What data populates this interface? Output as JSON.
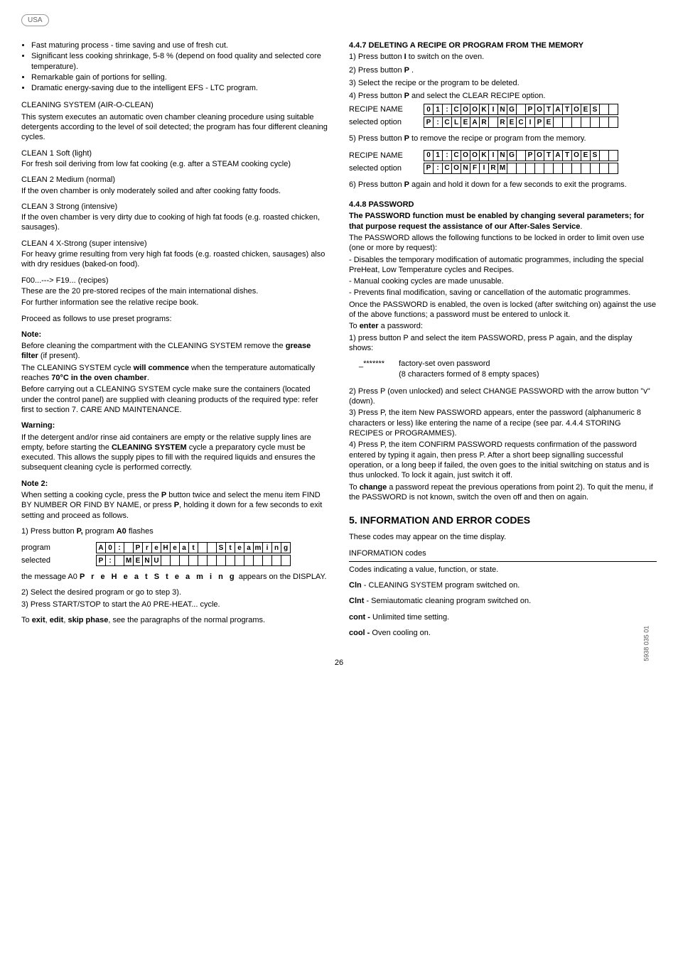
{
  "badge": "USA",
  "left": {
    "bullets": [
      "Fast maturing process - time saving and use of fresh cut.",
      "Significant less cooking shrinkage, 5-8 % (depend on food quality and selected core temperature).",
      "Remarkable gain of portions for selling.",
      "Dramatic energy-saving due to the intelligent EFS - LTC program."
    ],
    "cleaning_title": "CLEANING SYSTEM (AIR-O-CLEAN)",
    "cleaning_body": "This system executes an automatic oven chamber cleaning procedure using suitable detergents according to the level of soil detected; the program has four different cleaning cycles.",
    "clean1_h": "CLEAN  1  Soft (light)",
    "clean1_b": "For fresh soil deriving from low fat cooking (e.g. after a STEAM cooking cycle)",
    "clean2_h": "CLEAN  2 Medium (normal)",
    "clean2_b": "If the oven chamber is only moderately soiled and after cooking fatty foods.",
    "clean3_h": "CLEAN  3 Strong (intensive)",
    "clean3_b": "If the oven chamber is very dirty due to cooking of high fat foods (e.g. roasted chicken, sausages).",
    "clean4_h": "CLEAN  4 X-Strong (super intensive)",
    "clean4_b": "For heavy grime resulting from very high fat foods (e.g. roasted chicken, sausages) also with dry residues (baked-on food).",
    "recipes_h": "F00...---> F19...   (recipes)",
    "recipes_b1": "These are the 20 pre-stored recipes of the main international dishes.",
    "recipes_b2": "For further information see the relative recipe book.",
    "proceed": "Proceed as follows to use preset programs:",
    "note_h": "Note:",
    "note_b1a": "Before cleaning the compartment with the CLEANING SYSTEM remove the ",
    "note_b1b": "grease filter",
    "note_b1c": " (if present).",
    "note_b2a": "The CLEANING SYSTEM cycle ",
    "note_b2b": "will commence",
    "note_b2c": " when the temperature automatically reaches ",
    "note_b2d": "70°C in the oven chamber",
    "note_b2e": ".",
    "note_b3": "Before carrying out a CLEANING SYSTEM cycle make sure the containers (located under the control panel) are supplied with cleaning products of the required type: refer first to section 7. CARE AND MAINTENANCE.",
    "warn_h": "Warning:",
    "warn_b_a": "If the detergent and/or rinse aid containers are empty or the relative supply lines are empty, before starting the ",
    "warn_b_b": "CLEANING SYSTEM",
    "warn_b_c": " cycle a preparatory cycle must be executed. This allows the supply pipes to fill with the required liquids and ensures the subsequent cleaning cycle is performed correctly.",
    "note2_h": "Note 2:",
    "note2_b_a": "When setting a cooking cycle, press the ",
    "note2_b_b": "P",
    "note2_b_c": "  button twice and select the menu item FIND BY NUMBER OR FIND BY NAME, or press ",
    "note2_b_d": "P",
    "note2_b_e": ", holding it down for a few seconds to exit setting and proceed as follows.",
    "step1_a": "1) Press button ",
    "step1_b": "P,",
    "step1_c": "  program ",
    "step1_d": "A0",
    "step1_e": " flashes",
    "grid1_label1": "program",
    "grid1_label2": "selected",
    "grid1_row1": [
      "A",
      "0",
      ":",
      "",
      "P",
      "r",
      "e",
      "H",
      "e",
      "a",
      "t",
      "",
      "",
      "S",
      "t",
      "e",
      "a",
      "m",
      "i",
      "n",
      "g"
    ],
    "grid1_row2": [
      "P",
      ":",
      "",
      "M",
      "E",
      "N",
      "U",
      "",
      "",
      "",
      "",
      "",
      "",
      "",
      "",
      "",
      "",
      "",
      "",
      "",
      ""
    ],
    "msg_a": "the message A0  ",
    "msg_b": "P r e H e a t     S t e a m i n g",
    "msg_c": " appears on the DISPLAY.",
    "step2": "2) Select the desired program or go to step 3).",
    "step3": "3) Press START/STOP to start the A0 PRE-HEAT... cycle.",
    "exit_a": "To ",
    "exit_b": "exit",
    "exit_c": ", ",
    "exit_d": "edit",
    "exit_e": ", ",
    "exit_f": "skip phase",
    "exit_g": ", see the paragraphs of the normal programs."
  },
  "right": {
    "h447": "4.4.7   DELETING A RECIPE OR PROGRAM FROM THE MEMORY",
    "s1_a": "1) Press button ",
    "s1_b": "I",
    "s1_c": " to switch on the oven.",
    "s2_a": "2) Press button ",
    "s2_b": "P",
    "s2_c": " .",
    "s3": "3) Select the recipe or the program to be deleted.",
    "s4_a": "4) Press button ",
    "s4_b": "P",
    "s4_c": " and select the CLEAR RECIPE option.",
    "grid2_label1": "RECIPE NAME",
    "grid2_label2": "selected option",
    "grid2_row1": [
      "0",
      "1",
      ":",
      "C",
      "O",
      "O",
      "K",
      "I",
      "N",
      "G",
      "",
      "P",
      "O",
      "T",
      "A",
      "T",
      "O",
      "E",
      "S",
      "",
      ""
    ],
    "grid2_row2": [
      "P",
      ":",
      "C",
      "L",
      "E",
      "A",
      "R",
      "",
      "R",
      "E",
      "C",
      "I",
      "P",
      "E",
      "",
      "",
      "",
      "",
      "",
      "",
      ""
    ],
    "s5_a": "5) Press button ",
    "s5_b": "P",
    "s5_c": " to remove the recipe or program from the memory.",
    "grid3_label1": "RECIPE NAME",
    "grid3_label2": "selected option",
    "grid3_row1": [
      "0",
      "1",
      ":",
      "C",
      "O",
      "O",
      "K",
      "I",
      "N",
      "G",
      "",
      "P",
      "O",
      "T",
      "A",
      "T",
      "O",
      "E",
      "S",
      "",
      ""
    ],
    "grid3_row2": [
      "P",
      ":",
      "C",
      "O",
      "N",
      "F",
      "I",
      "R",
      "M",
      "",
      "",
      "",
      "",
      "",
      "",
      "",
      "",
      "",
      "",
      "",
      ""
    ],
    "s6_a": "6) Press button ",
    "s6_b": "P",
    "s6_c": " again and hold it down for a few seconds to exit the programs.",
    "h448": "4.4.8 PASSWORD",
    "pw_bold": "The PASSWORD function must be enabled by changing several parameters; for that purpose request the assistance of our After-Sales Service",
    "pw_p1": "The PASSWORD allows the following functions to be locked in order to limit oven use (one or more by request):",
    "pw_p2": "- Disables the temporary modification of automatic programmes, including the special PreHeat, Low Temperature cycles and Recipes.",
    "pw_p3": "- Manual cooking cycles are made unusable.",
    "pw_p4": "- Prevents final modification, saving or cancellation of the automatic programmes.",
    "pw_p5": "Once the PASSWORD is enabled, the oven is locked (after switching on) against the use of the above functions; a password must be entered to unlock it.",
    "pw_enter_a": "To ",
    "pw_enter_b": "enter",
    "pw_enter_c": " a password:",
    "pw_s1": "1) press button P and select the item PASSWORD, press P again, and the display shows:",
    "pw_stars": "_*******",
    "pw_factory1": "factory-set oven password",
    "pw_factory2": "(8 characters formed of 8 empty spaces)",
    "pw_s2": "2) Press P (oven unlocked) and select CHANGE PASSWORD with the arrow button \"v\" (down).",
    "pw_s3": "3) Press P, the item New PASSWORD appears, enter the password (alphanumeric 8 characters or less) like entering the name of a recipe (see par. 4.4.4 STORING RECIPES or PROGRAMMES).",
    "pw_s4": "4) Press P, the item CONFIRM PASSWORD requests confirmation of the password entered by typing it again, then press P. After a short beep signalling successful operation, or a long beep if failed, the oven goes to the initial switching on status and is thus unlocked. To lock it again, just switch it off.",
    "pw_change_a": "To ",
    "pw_change_b": "change",
    "pw_change_c": " a password repeat the previous operations from point 2). To quit the menu, if the PASSWORD is not known, switch the oven off and then on again.",
    "h5": "5.   INFORMATION AND ERROR CODES",
    "h5_sub": "These codes may appear on the time display.",
    "info_h": "INFORMATION codes",
    "info_sub": "Codes indicating a value, function, or state.",
    "c1a": "Cln",
    "c1b": " -  CLEANING SYSTEM program switched on.",
    "c2a": "Clnt",
    "c2b": " - Semiautomatic cleaning program switched on.",
    "c3a": "cont -",
    "c3b": " Unlimited time setting.",
    "c4a": "cool -",
    "c4b": "  Oven cooling on."
  },
  "page_num": "26",
  "side_code": "5938 035 01"
}
